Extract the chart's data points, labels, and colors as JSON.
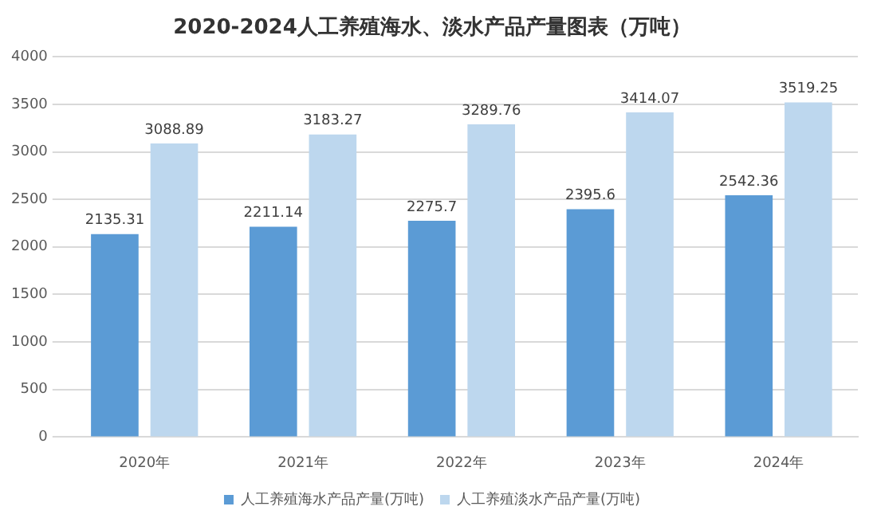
{
  "chart_data": {
    "type": "bar",
    "title": "2020-2024人工养殖海水、淡水产品产量图表（万吨）",
    "categories": [
      "2020年",
      "2021年",
      "2022年",
      "2023年",
      "2024年"
    ],
    "series": [
      {
        "name": "人工养殖海水产品产量(万吨)",
        "color": "#5b9bd5",
        "values": [
          2135.31,
          2211.14,
          2275.7,
          2395.6,
          2542.36
        ]
      },
      {
        "name": "人工养殖淡水产品产量(万吨)",
        "color": "#bdd7ee",
        "values": [
          3088.89,
          3183.27,
          3289.76,
          3414.07,
          3519.25
        ]
      }
    ],
    "ylim": [
      0,
      4000
    ],
    "yticks": [
      0,
      500,
      1000,
      1500,
      2000,
      2500,
      3000,
      3500,
      4000
    ],
    "grid": "y",
    "legend": "bottom",
    "data_labels": true
  }
}
